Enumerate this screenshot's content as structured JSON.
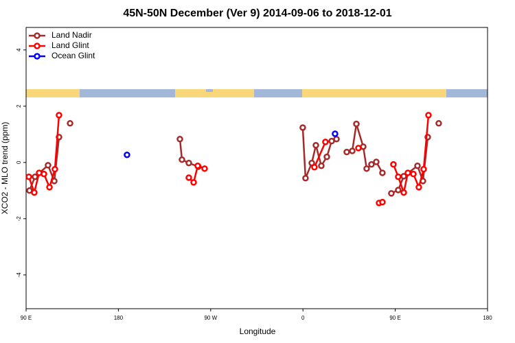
{
  "chart_data": {
    "type": "line",
    "title": "45N-50N December (Ver 9)   2014-09-06 to 2018-12-01",
    "x_label": "Longitude",
    "y_label": "XCO2 - MLO trend (ppm)",
    "xlim": [
      90,
      540
    ],
    "ylim": [
      -5.2,
      4.8
    ],
    "xticks": [
      {
        "value": 90,
        "label": "90 E"
      },
      180,
      {
        "value": 270,
        "label": "90 W"
      },
      {
        "value": 360,
        "label": "0"
      },
      {
        "value": 450,
        "label": "90 E"
      },
      {
        "value": 540,
        "label": "180"
      }
    ],
    "yticks": [
      -4,
      -2,
      0,
      2,
      4
    ],
    "legend": "top-left",
    "series": [
      {
        "name": "Land Nadir",
        "color": "#a52a2a",
        "x": [
          93.3,
          98.7,
          111.4,
          117.5,
          122.1,
          null,
          132.9,
          null,
          240.0,
          242.0,
          248.7,
          258.0,
          null,
          359.8,
          362.5,
          368.6,
          372.6,
          377.9,
          383.3,
          388.0,
          392.7,
          null,
          402.7,
          408.1,
          412.1,
          418.8,
          422.1,
          426.8,
          431.5,
          437.5,
          null,
          446.2,
          452.9,
          458.3,
          471.7,
          477.0,
          481.7,
          null,
          492.4
        ],
        "values": [
          -1.0,
          -0.51,
          -0.1,
          -0.66,
          0.9,
          null,
          1.39,
          null,
          0.83,
          0.1,
          -0.02,
          -0.15,
          null,
          1.24,
          -0.56,
          -0.02,
          0.61,
          -0.12,
          0.2,
          0.76,
          0.83,
          null,
          0.37,
          0.41,
          1.37,
          0.56,
          -0.22,
          -0.07,
          0.02,
          -0.37,
          null,
          -1.1,
          -0.98,
          -0.49,
          -0.12,
          -0.66,
          0.9,
          null,
          1.39
        ]
      },
      {
        "name": "Land Glint",
        "color": "#ff0000",
        "x": [
          92.7,
          98.0,
          102.7,
          107.4,
          112.8,
          118.1,
          122.1,
          null,
          248.7,
          253.4,
          257.4,
          264.1,
          null,
          371.2,
          381.9,
          null,
          414.1,
          null,
          434.2,
          437.5,
          null,
          448.2,
          452.9,
          458.3,
          462.3,
          467.7,
          473.0,
          477.7,
          482.4
        ],
        "values": [
          -0.51,
          -1.07,
          -0.37,
          -0.41,
          -0.88,
          -0.24,
          1.68,
          null,
          -0.54,
          -0.71,
          -0.12,
          -0.22,
          null,
          -0.17,
          0.73,
          null,
          0.51,
          null,
          -1.44,
          -1.41,
          null,
          -0.07,
          -0.51,
          -1.07,
          -0.37,
          -0.41,
          -0.88,
          -0.24,
          1.68
        ]
      },
      {
        "name": "Ocean Glint",
        "color": "#0000ff",
        "x": [
          188.4,
          null,
          391.3
        ],
        "values": [
          0.27,
          null,
          1.02
        ]
      }
    ]
  }
}
